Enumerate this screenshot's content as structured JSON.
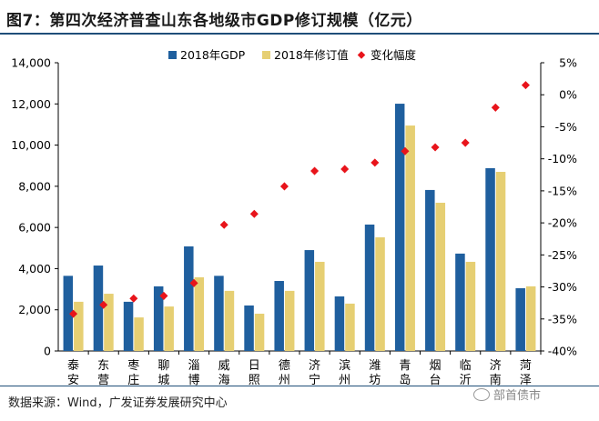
{
  "header": {
    "title": "图7：第四次经济普查山东各地级市GDP修订规模（亿元）"
  },
  "footer": {
    "source": "数据来源：Wind，广发证券发展研究中心",
    "watermark": "部首债市"
  },
  "colors": {
    "gdp": "#1f5f9e",
    "revised": "#e6cf73",
    "change": "#e8141b",
    "axis": "#000000"
  },
  "chart_data": {
    "type": "bar",
    "title": "第四次经济普查山东各地级市GDP修订规模（亿元）",
    "categories": [
      "泰安",
      "东营",
      "枣庄",
      "聊城",
      "淄博",
      "威海",
      "日照",
      "德州",
      "济宁",
      "滨州",
      "潍坊",
      "青岛",
      "烟台",
      "临沂",
      "济南",
      "菏泽"
    ],
    "series": [
      {
        "name": "2018年GDP",
        "axis": "left",
        "kind": "bar",
        "values": [
          3650,
          4150,
          2390,
          3140,
          5080,
          3650,
          2210,
          3400,
          4900,
          2650,
          6140,
          12010,
          7820,
          4730,
          8880,
          3050
        ]
      },
      {
        "name": "2018年修订值",
        "axis": "left",
        "kind": "bar",
        "values": [
          2390,
          2780,
          1630,
          2160,
          3580,
          2920,
          1810,
          2920,
          4330,
          2300,
          5520,
          10950,
          7200,
          4330,
          8700,
          3140
        ]
      },
      {
        "name": "变化幅度",
        "axis": "right",
        "kind": "scatter",
        "unit": "%",
        "values": [
          -34.2,
          -32.8,
          -31.8,
          -31.4,
          -29.4,
          -20.3,
          -18.6,
          -14.3,
          -11.9,
          -11.6,
          -10.6,
          -8.8,
          -8.2,
          -7.5,
          -2.0,
          1.5
        ]
      }
    ],
    "y_left": {
      "min": 0,
      "max": 14000,
      "ticks": [
        "0",
        "2,000",
        "4,000",
        "6,000",
        "8,000",
        "10,000",
        "12,000",
        "14,000"
      ]
    },
    "y_right": {
      "min": -40,
      "max": 5,
      "ticks": [
        "-40%",
        "-35%",
        "-30%",
        "-25%",
        "-20%",
        "-15%",
        "-10%",
        "-5%",
        "0%",
        "5%"
      ]
    },
    "legend": {
      "position": "top-center",
      "entries": [
        "2018年GDP",
        "2018年修订值",
        "变化幅度"
      ]
    },
    "grid": false,
    "xlabel": "",
    "ylabel": ""
  }
}
